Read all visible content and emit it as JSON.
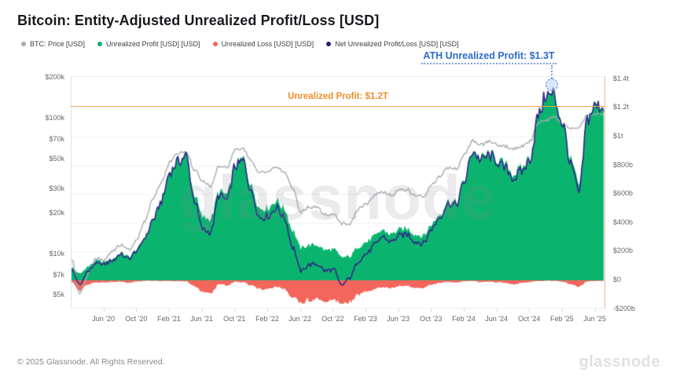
{
  "header": {
    "title": "Bitcoin: Entity-Adjusted Unrealized Profit/Loss [USD]"
  },
  "legend": [
    {
      "label": "BTC: Price [USD]",
      "color": "#a7abaf"
    },
    {
      "label": "Unrealized Profit [USD] [USD]",
      "color": "#0ab46e"
    },
    {
      "label": "Unrealized Loss [USD] [USD]",
      "color": "#f4655c"
    },
    {
      "label": "Net Unrealized Profit/Loss [USD] [USD]",
      "color": "#2a2173"
    }
  ],
  "annotations": {
    "ath_label": "ATH Unrealized Profit: $1.3T",
    "ath_value_b": 1350,
    "ath_month": "2024-12",
    "ath_color": "#2e6bcc",
    "hline_label": "Unrealized Profit: $1.2T",
    "hline_value_b": 1200,
    "hline_color": "#ee8e2b"
  },
  "watermark": "glassnode",
  "footer": {
    "copyright": "© 2025 Glassnode. All Rights Reserved.",
    "brand": "glassnode"
  },
  "chart_data": {
    "type": "area+line",
    "grid": "horizontal",
    "legend_position": "top",
    "x_unit": "month",
    "x_tick_labels": [
      "Jun '20",
      "Oct '20",
      "Feb '21",
      "Jun '21",
      "Oct '21",
      "Feb '22",
      "Jun '22",
      "Oct '22",
      "Feb '23",
      "Jun '23",
      "Oct '23",
      "Feb '24",
      "Jun '24",
      "Oct '24",
      "Feb '25",
      "Jun '25"
    ],
    "left_axis": {
      "title": "BTC price, USD",
      "scale": "log",
      "ticks": [
        {
          "label": "$200k",
          "value": 200000
        },
        {
          "label": "$100k",
          "value": 100000
        },
        {
          "label": "$70k",
          "value": 70000
        },
        {
          "label": "$50k",
          "value": 50000
        },
        {
          "label": "$30k",
          "value": 30000
        },
        {
          "label": "$20k",
          "value": 20000
        },
        {
          "label": "$10k",
          "value": 10000
        },
        {
          "label": "$7k",
          "value": 7000
        },
        {
          "label": "$5k",
          "value": 5000
        }
      ]
    },
    "right_axis": {
      "title": "Unrealized profit/loss, USD",
      "scale": "linear",
      "range_b": [
        -220,
        1420
      ],
      "ticks": [
        {
          "label": "$1.4t",
          "value_b": 1400
        },
        {
          "label": "$1.2t",
          "value_b": 1200
        },
        {
          "label": "$1t",
          "value_b": 1000
        },
        {
          "label": "$800b",
          "value_b": 800
        },
        {
          "label": "$600b",
          "value_b": 600
        },
        {
          "label": "$400b",
          "value_b": 400
        },
        {
          "label": "$200b",
          "value_b": 200
        },
        {
          "label": "$0",
          "value_b": 0
        },
        {
          "label": "-$200b",
          "value_b": -200
        }
      ]
    },
    "months": [
      "2020-02",
      "2020-03",
      "2020-04",
      "2020-05",
      "2020-06",
      "2020-07",
      "2020-08",
      "2020-09",
      "2020-10",
      "2020-11",
      "2020-12",
      "2021-01",
      "2021-02",
      "2021-03",
      "2021-04",
      "2021-05",
      "2021-06",
      "2021-07",
      "2021-08",
      "2021-09",
      "2021-10",
      "2021-11",
      "2021-12",
      "2022-01",
      "2022-02",
      "2022-03",
      "2022-04",
      "2022-05",
      "2022-06",
      "2022-07",
      "2022-08",
      "2022-09",
      "2022-10",
      "2022-11",
      "2022-12",
      "2023-01",
      "2023-02",
      "2023-03",
      "2023-04",
      "2023-05",
      "2023-06",
      "2023-07",
      "2023-08",
      "2023-09",
      "2023-10",
      "2023-11",
      "2023-12",
      "2024-01",
      "2024-02",
      "2024-03",
      "2024-04",
      "2024-05",
      "2024-06",
      "2024-07",
      "2024-08",
      "2024-09",
      "2024-10",
      "2024-11",
      "2024-12",
      "2025-01",
      "2025-02",
      "2025-03",
      "2025-04",
      "2025-05",
      "2025-06",
      "2025-07"
    ],
    "series": [
      {
        "name": "BTC: Price [USD]",
        "type": "line",
        "axis": "left",
        "color": "#a7abaf",
        "values": [
          9300,
          5200,
          7100,
          9400,
          9200,
          10500,
          11700,
          10800,
          13000,
          17700,
          26000,
          34000,
          48000,
          56000,
          58000,
          42000,
          35000,
          32000,
          45000,
          44000,
          59000,
          60000,
          48000,
          40000,
          41000,
          44000,
          41000,
          31000,
          20500,
          22500,
          22000,
          19500,
          19800,
          16800,
          16800,
          21500,
          23500,
          27000,
          29000,
          27200,
          29500,
          29800,
          27000,
          26800,
          32500,
          37500,
          43000,
          42800,
          55000,
          68500,
          64000,
          67500,
          63500,
          62500,
          59500,
          62500,
          68000,
          92000,
          98000,
          102000,
          91000,
          84000,
          87000,
          105500,
          107000,
          108000
        ]
      },
      {
        "name": "Unrealized Profit [USD] [USD]",
        "type": "area",
        "axis": "right",
        "color": "#0ab46e",
        "values_b": [
          90,
          45,
          95,
          135,
          130,
          150,
          190,
          165,
          215,
          305,
          430,
          560,
          760,
          830,
          875,
          600,
          440,
          430,
          615,
          595,
          805,
          845,
          650,
          500,
          505,
          555,
          500,
          350,
          225,
          245,
          245,
          210,
          215,
          160,
          165,
          235,
          265,
          305,
          350,
          320,
          350,
          360,
          320,
          310,
          390,
          460,
          550,
          540,
          700,
          905,
          850,
          880,
          840,
          800,
          740,
          780,
          855,
          1150,
          1300,
          1250,
          1100,
          830,
          660,
          1130,
          1220,
          1210
        ]
      },
      {
        "name": "Unrealized Loss [USD] [USD]",
        "type": "area",
        "axis": "right",
        "color": "#f4655c",
        "values_b": [
          -12,
          -70,
          -30,
          -15,
          -15,
          -12,
          -8,
          -16,
          -8,
          -4,
          -2,
          -5,
          -4,
          -6,
          -8,
          -40,
          -80,
          -95,
          -25,
          -35,
          -10,
          -12,
          -38,
          -62,
          -58,
          -45,
          -60,
          -112,
          -155,
          -138,
          -128,
          -142,
          -138,
          -152,
          -145,
          -100,
          -80,
          -60,
          -45,
          -52,
          -40,
          -38,
          -52,
          -50,
          -30,
          -18,
          -12,
          -15,
          -8,
          -5,
          -12,
          -8,
          -14,
          -18,
          -28,
          -20,
          -12,
          -4,
          -3,
          -4,
          -10,
          -28,
          -45,
          -8,
          -5,
          -4
        ]
      },
      {
        "name": "Net Unrealized Profit/Loss [USD] [USD]",
        "type": "line",
        "axis": "right",
        "color": "#32278a",
        "values_b": [
          75,
          -30,
          62,
          118,
          114,
          136,
          180,
          148,
          205,
          300,
          426,
          553,
          754,
          822,
          865,
          556,
          355,
          330,
          588,
          558,
          793,
          830,
          610,
          435,
          445,
          508,
          438,
          235,
          65,
          104,
          114,
          65,
          74,
          -38,
          18,
          132,
          183,
          243,
          303,
          266,
          308,
          320,
          266,
          258,
          358,
          440,
          536,
          523,
          690,
          898,
          836,
          870,
          824,
          780,
          710,
          758,
          841,
          1144,
          1295,
          1244,
          1088,
          800,
          612,
          1120,
          1213,
          1204
        ]
      }
    ]
  }
}
